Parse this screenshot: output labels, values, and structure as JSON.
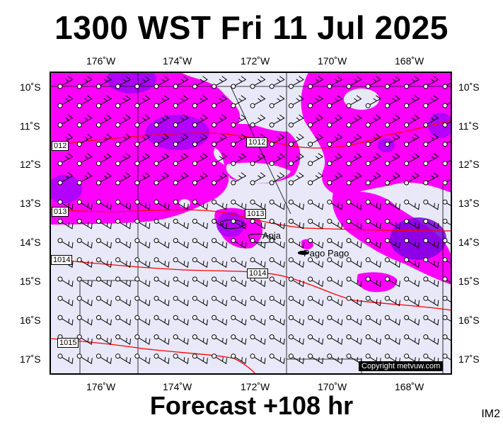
{
  "title": "1300 WST Fri 11 Jul 2025",
  "subtitle": "Forecast +108 hr",
  "corner_code": "IM2",
  "copyright": "Copyright metvuw.com",
  "lon_labels": [
    "176˚W",
    "174˚W",
    "172˚W",
    "170˚W",
    "168˚W"
  ],
  "lat_labels": [
    "10˚S",
    "11˚S",
    "12˚S",
    "13˚S",
    "14˚S",
    "15˚S",
    "16˚S",
    "17˚S"
  ],
  "places": {
    "apia": "Apia",
    "pago": "Pago Pago"
  },
  "isobars": {
    "i1012": "1012",
    "i1012_left": "012",
    "i1013": "1013",
    "i1013_left": "013",
    "i1014": "1014",
    "i1014_left": "1014",
    "i1015": "1015"
  },
  "colors": {
    "rain_light": "#ff00ff",
    "rain_heavy": "#8000ff",
    "background": "#e8e8f8",
    "isobar": "#ff0000"
  }
}
